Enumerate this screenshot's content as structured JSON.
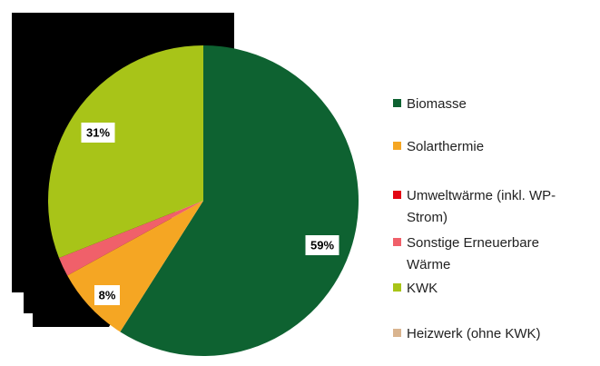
{
  "chart_data": {
    "type": "pie",
    "categories": [
      "Biomasse",
      "Solarthermie",
      "Umweltwärme (inkl. WP-Strom)",
      "Sonstige Erneuerbare Wärme",
      "KWK",
      "Heizwerk (ohne KWK)"
    ],
    "values": [
      59,
      8,
      0,
      2,
      31,
      0
    ],
    "value_labels": [
      "59%",
      "8%",
      null,
      null,
      "31%",
      null
    ],
    "colors": [
      "#0e6231",
      "#f5a623",
      "#e30613",
      "#f0606a",
      "#a8c418",
      "#d9b48f"
    ]
  }
}
